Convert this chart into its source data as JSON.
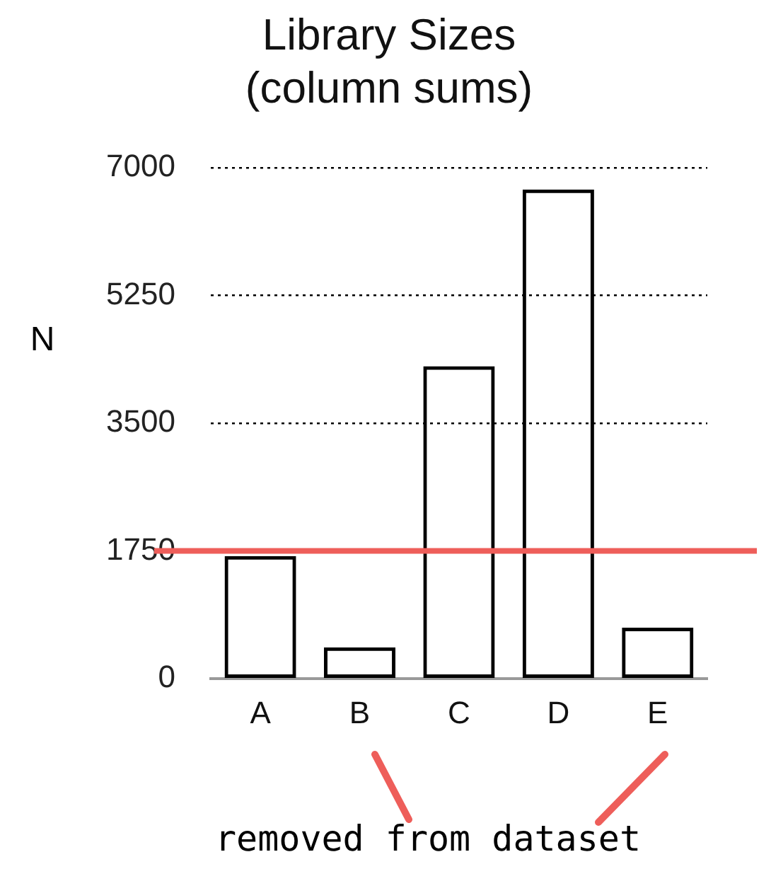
{
  "chart_data": {
    "type": "bar",
    "title": "Library Sizes\n(column sums)",
    "ylabel": "N",
    "categories": [
      "A",
      "B",
      "C",
      "D",
      "E"
    ],
    "values": [
      1680,
      430,
      4280,
      6700,
      700
    ],
    "color": "#000000",
    "ylim": [
      0,
      7000
    ],
    "yticks": [
      0,
      1750,
      3500,
      5250,
      7000
    ],
    "grid": "y",
    "legend": false,
    "ref_lines": [
      {
        "axis": "y",
        "value": 1750,
        "color": "#ee5e5a"
      }
    ],
    "annotations": [
      "removed from dataset"
    ]
  }
}
